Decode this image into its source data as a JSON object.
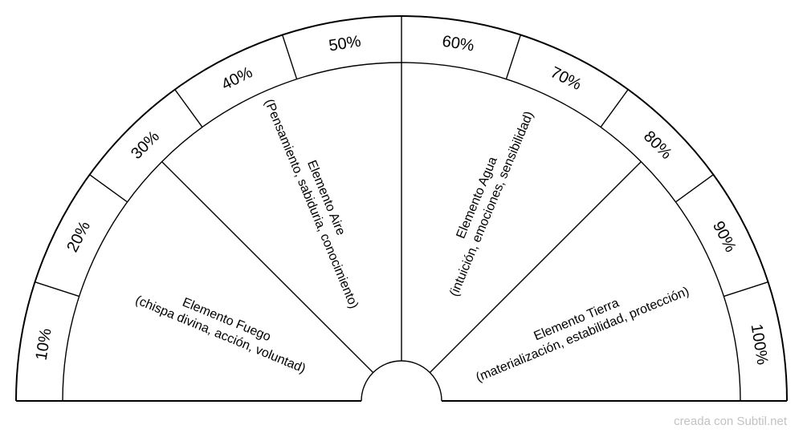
{
  "colors": {
    "stroke": "#000000",
    "background": "#ffffff",
    "credit": "#c2c2c2"
  },
  "chart_data": {
    "type": "pendulum-chart",
    "scale_labels": [
      "10%",
      "20%",
      "30%",
      "40%",
      "50%",
      "60%",
      "70%",
      "80%",
      "90%",
      "100%"
    ],
    "sectors": [
      {
        "label": "Elemento Fuego",
        "sublabel": "(chispa divina, acción, voluntad)"
      },
      {
        "label": "Elemento Aire",
        "sublabel": "(Pensamiento, sabiduria, conocimiento)"
      },
      {
        "label": "Elemento Agua",
        "sublabel": "(intuición, emociones, sensibilidad)"
      },
      {
        "label": "Elemento Tierra",
        "sublabel": "(materialización, estabilidad, protección)"
      }
    ]
  },
  "footer": {
    "credit": "creada con Subtil.net"
  }
}
